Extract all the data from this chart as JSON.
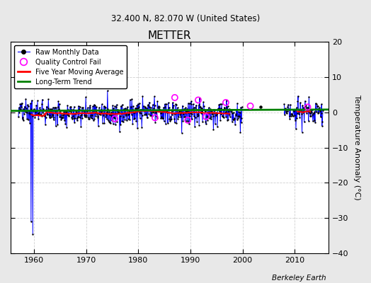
{
  "title": "METTER",
  "subtitle": "32.400 N, 82.070 W (United States)",
  "ylabel": "Temperature Anomaly (°C)",
  "credit": "Berkeley Earth",
  "ylim": [
    -40,
    20
  ],
  "xlim": [
    1955.5,
    2016.5
  ],
  "yticks": [
    -40,
    -30,
    -20,
    -10,
    0,
    10,
    20
  ],
  "xticks": [
    1960,
    1970,
    1980,
    1990,
    2000,
    2010
  ],
  "plot_bg": "#ffffff",
  "fig_bg": "#e8e8e8",
  "grid_color": "#d0d0d0",
  "trend_slope": 0.006,
  "trend_intercept": -11.3,
  "seg1_start": 1957.0,
  "seg1_end": 2000.0,
  "seg2_start": 2008.0,
  "seg2_end": 2015.5,
  "outlier1_x": 1959.42,
  "outlier1_y": -31.0,
  "outlier2_x": 1959.83,
  "outlier2_y": -34.5,
  "isolated_dot_x": 2003.5,
  "isolated_dot_y": 1.5,
  "noise_scale": 1.8,
  "qc_x": [
    1975.5,
    1983.2,
    1987.0,
    1989.5,
    1991.5,
    1993.0,
    1996.8,
    2001.5,
    2012.5
  ],
  "qc_y": [
    -1.8,
    -1.5,
    4.2,
    -2.2,
    3.5,
    -1.2,
    2.8,
    1.8,
    1.5
  ]
}
